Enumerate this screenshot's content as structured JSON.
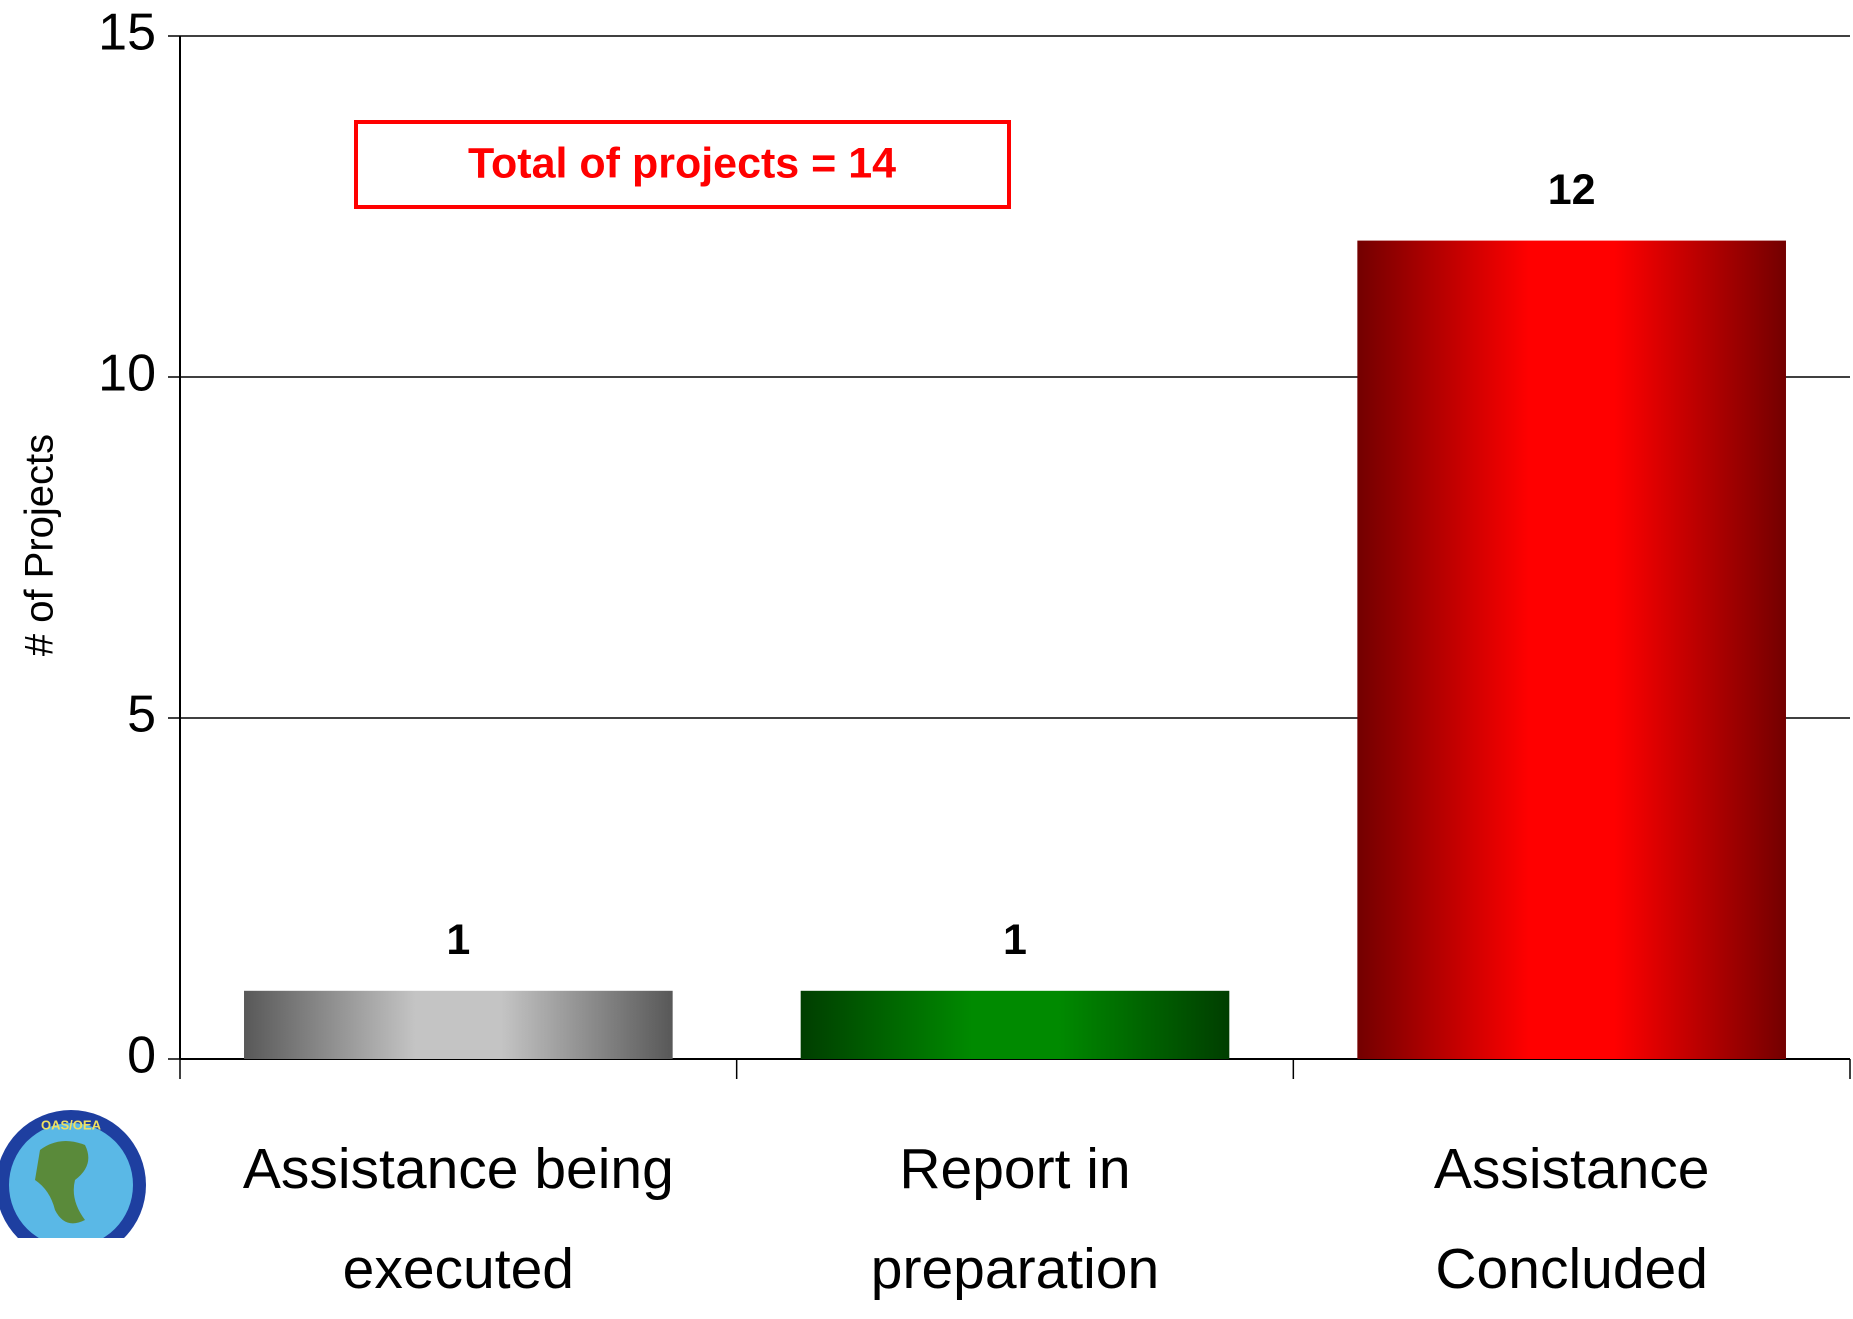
{
  "chart_data": {
    "type": "bar",
    "y_label": "# of Projects",
    "annotation": "Total of projects = 14",
    "categories": [
      "Assistance being executed",
      "Report in preparation",
      "Assistance Concluded"
    ],
    "values": [
      1,
      1,
      12
    ],
    "colors": [
      "#c4c4c4",
      "#008a00",
      "#ff0000"
    ],
    "ylim": [
      0,
      15
    ],
    "yticks": [
      0,
      5,
      10,
      15
    ],
    "grid": true,
    "logo_text": "OAS/OEA"
  }
}
